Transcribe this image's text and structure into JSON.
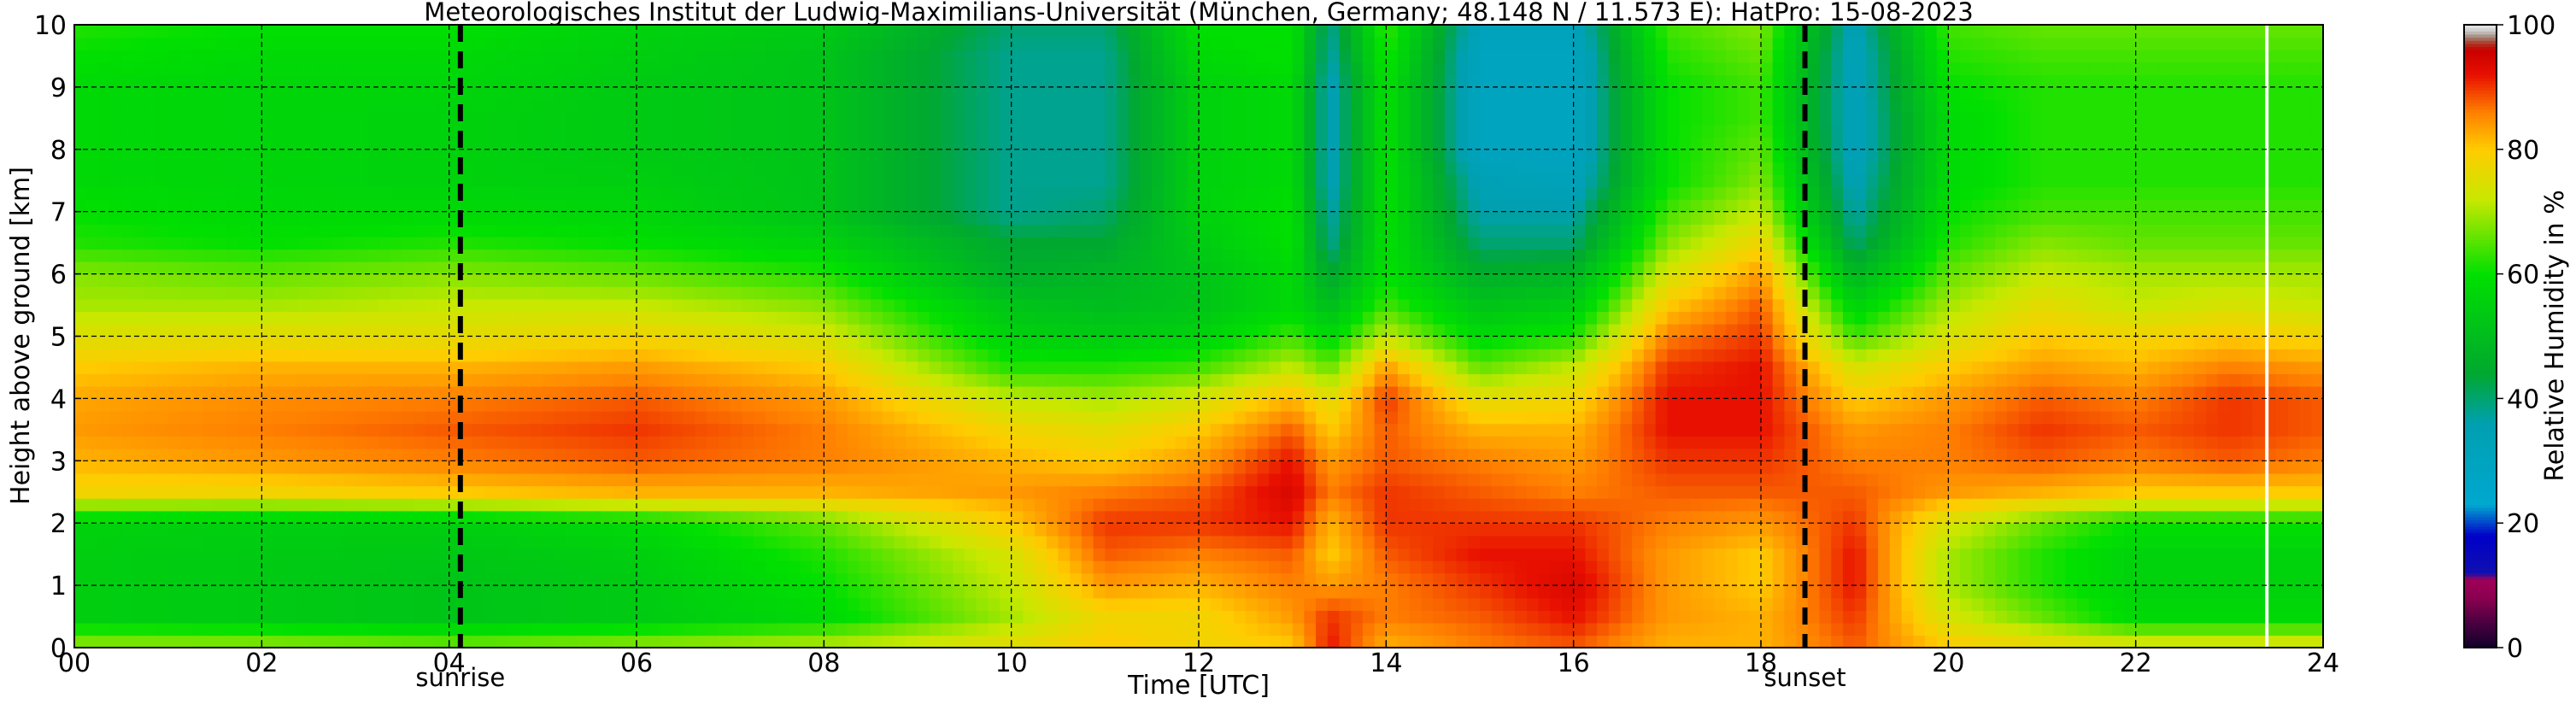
{
  "chart_data": {
    "type": "heatmap",
    "title": "Meteorologisches Institut der Ludwig-Maximilians-Universität (München, Germany; 48.148 N / 11.573 E):    HatPro: 15-08-2023",
    "xlabel": "Time [UTC]",
    "ylabel": "Height above ground [km]",
    "xlim": [
      0,
      24
    ],
    "ylim": [
      0,
      10
    ],
    "x_ticks": [
      "00",
      "02",
      "04",
      "06",
      "08",
      "10",
      "12",
      "14",
      "16",
      "18",
      "20",
      "22",
      "24"
    ],
    "y_ticks": [
      "0",
      "1",
      "2",
      "3",
      "4",
      "5",
      "6",
      "7",
      "8",
      "9",
      "10"
    ],
    "grid": true,
    "colorbar": {
      "label": "Relative Humidity in %",
      "range": [
        0,
        100
      ],
      "ticks": [
        "0",
        "20",
        "40",
        "60",
        "80",
        "100"
      ],
      "stops": [
        {
          "v": 0,
          "color": "#10002a"
        },
        {
          "v": 4,
          "color": "#4a0040"
        },
        {
          "v": 8,
          "color": "#8a0050"
        },
        {
          "v": 11,
          "color": "#a00058"
        },
        {
          "v": 12,
          "color": "#1010b0"
        },
        {
          "v": 18,
          "color": "#0000c8"
        },
        {
          "v": 23,
          "color": "#00a8d0"
        },
        {
          "v": 36,
          "color": "#00a0b0"
        },
        {
          "v": 44,
          "color": "#00a830"
        },
        {
          "v": 60,
          "color": "#00e000"
        },
        {
          "v": 72,
          "color": "#c8e800"
        },
        {
          "v": 80,
          "color": "#ffcc00"
        },
        {
          "v": 86,
          "color": "#ff8000"
        },
        {
          "v": 92,
          "color": "#e81000"
        },
        {
          "v": 96,
          "color": "#c80000"
        },
        {
          "v": 97,
          "color": "#b03020"
        },
        {
          "v": 98,
          "color": "#a08070"
        },
        {
          "v": 99,
          "color": "#c8c8c8"
        },
        {
          "v": 100,
          "color": "#e8e8e8"
        }
      ]
    },
    "events": [
      {
        "name": "sunrise",
        "time": 4.12
      },
      {
        "name": "sunset",
        "time": 18.47
      }
    ],
    "rh_profiles": {
      "heights_km": [
        0,
        0.5,
        1,
        1.5,
        2,
        2.5,
        3,
        3.5,
        4,
        4.5,
        5,
        5.5,
        6,
        6.5,
        7,
        7.5,
        8,
        8.5,
        9,
        9.5,
        10
      ],
      "series": [
        {
          "time": 0,
          "rh": [
            70,
            55,
            55,
            55,
            56,
            78,
            82,
            84,
            83,
            80,
            75,
            70,
            68,
            62,
            60,
            58,
            58,
            58,
            58,
            60,
            62
          ]
        },
        {
          "time": 2,
          "rh": [
            70,
            54,
            54,
            54,
            55,
            78,
            84,
            86,
            85,
            82,
            76,
            70,
            66,
            60,
            58,
            57,
            57,
            57,
            57,
            58,
            60
          ]
        },
        {
          "time": 4,
          "rh": [
            68,
            52,
            52,
            53,
            55,
            80,
            86,
            88,
            86,
            82,
            76,
            72,
            68,
            62,
            58,
            56,
            56,
            56,
            57,
            58,
            60
          ]
        },
        {
          "time": 6,
          "rh": [
            70,
            54,
            54,
            55,
            58,
            82,
            88,
            90,
            88,
            84,
            78,
            72,
            66,
            60,
            57,
            55,
            54,
            54,
            54,
            55,
            56
          ]
        },
        {
          "time": 8,
          "rh": [
            72,
            58,
            60,
            62,
            66,
            82,
            86,
            86,
            84,
            80,
            74,
            68,
            62,
            56,
            52,
            52,
            52,
            52,
            52,
            52,
            54
          ]
        },
        {
          "time": 10,
          "rh": [
            76,
            70,
            72,
            74,
            80,
            84,
            82,
            78,
            72,
            62,
            56,
            52,
            46,
            44,
            38,
            38,
            38,
            38,
            38,
            38,
            40
          ]
        },
        {
          "time": 11,
          "rh": [
            80,
            78,
            84,
            88,
            90,
            86,
            80,
            76,
            70,
            62,
            54,
            50,
            48,
            44,
            40,
            38,
            38,
            38,
            38,
            38,
            40
          ]
        },
        {
          "time": 12,
          "rh": [
            78,
            78,
            82,
            86,
            90,
            88,
            84,
            80,
            74,
            64,
            56,
            52,
            52,
            54,
            56,
            56,
            56,
            56,
            56,
            58,
            60
          ]
        },
        {
          "time": 13,
          "rh": [
            80,
            84,
            86,
            88,
            92,
            94,
            92,
            88,
            82,
            72,
            64,
            58,
            58,
            60,
            60,
            58,
            58,
            58,
            58,
            60,
            60
          ]
        },
        {
          "time": 13.4,
          "rh": [
            92,
            90,
            84,
            80,
            82,
            86,
            84,
            80,
            76,
            66,
            58,
            50,
            44,
            38,
            36,
            34,
            34,
            34,
            34,
            36,
            38
          ]
        },
        {
          "time": 14,
          "rh": [
            82,
            86,
            86,
            88,
            90,
            90,
            88,
            88,
            90,
            84,
            72,
            64,
            60,
            60,
            60,
            60,
            60,
            60,
            60,
            62,
            64
          ]
        },
        {
          "time": 15,
          "rh": [
            86,
            88,
            90,
            92,
            90,
            88,
            86,
            82,
            76,
            66,
            58,
            52,
            46,
            40,
            36,
            34,
            30,
            30,
            30,
            30,
            32
          ]
        },
        {
          "time": 16,
          "rh": [
            88,
            92,
            94,
            92,
            90,
            86,
            84,
            82,
            78,
            72,
            62,
            54,
            48,
            40,
            36,
            32,
            30,
            30,
            30,
            30,
            32
          ]
        },
        {
          "time": 17,
          "rh": [
            82,
            84,
            84,
            84,
            86,
            88,
            90,
            92,
            92,
            90,
            86,
            80,
            74,
            68,
            64,
            60,
            60,
            60,
            60,
            62,
            64
          ]
        },
        {
          "time": 18,
          "rh": [
            82,
            82,
            80,
            80,
            84,
            88,
            90,
            92,
            92,
            92,
            90,
            88,
            84,
            78,
            72,
            68,
            66,
            64,
            64,
            66,
            68
          ]
        },
        {
          "time": 19,
          "rh": [
            88,
            90,
            92,
            92,
            90,
            88,
            86,
            84,
            80,
            74,
            64,
            56,
            48,
            40,
            36,
            34,
            32,
            32,
            32,
            32,
            34
          ]
        },
        {
          "time": 20,
          "rh": [
            80,
            74,
            70,
            70,
            74,
            84,
            86,
            86,
            84,
            80,
            74,
            70,
            66,
            62,
            60,
            58,
            58,
            58,
            60,
            62,
            64
          ]
        },
        {
          "time": 21,
          "rh": [
            78,
            66,
            62,
            62,
            66,
            82,
            88,
            90,
            88,
            84,
            80,
            76,
            72,
            68,
            64,
            62,
            62,
            62,
            62,
            64,
            66
          ]
        },
        {
          "time": 22,
          "rh": [
            76,
            58,
            56,
            56,
            60,
            80,
            86,
            88,
            86,
            82,
            78,
            72,
            70,
            66,
            64,
            62,
            62,
            62,
            62,
            64,
            66
          ]
        },
        {
          "time": 23,
          "rh": [
            76,
            58,
            56,
            56,
            60,
            80,
            88,
            90,
            90,
            86,
            80,
            74,
            70,
            66,
            64,
            62,
            62,
            62,
            62,
            64,
            66
          ]
        },
        {
          "time": 24,
          "rh": [
            76,
            58,
            56,
            56,
            60,
            80,
            86,
            88,
            88,
            84,
            78,
            72,
            70,
            66,
            64,
            62,
            62,
            62,
            62,
            64,
            66
          ]
        }
      ]
    },
    "data_gap": {
      "time": 23.4
    }
  }
}
